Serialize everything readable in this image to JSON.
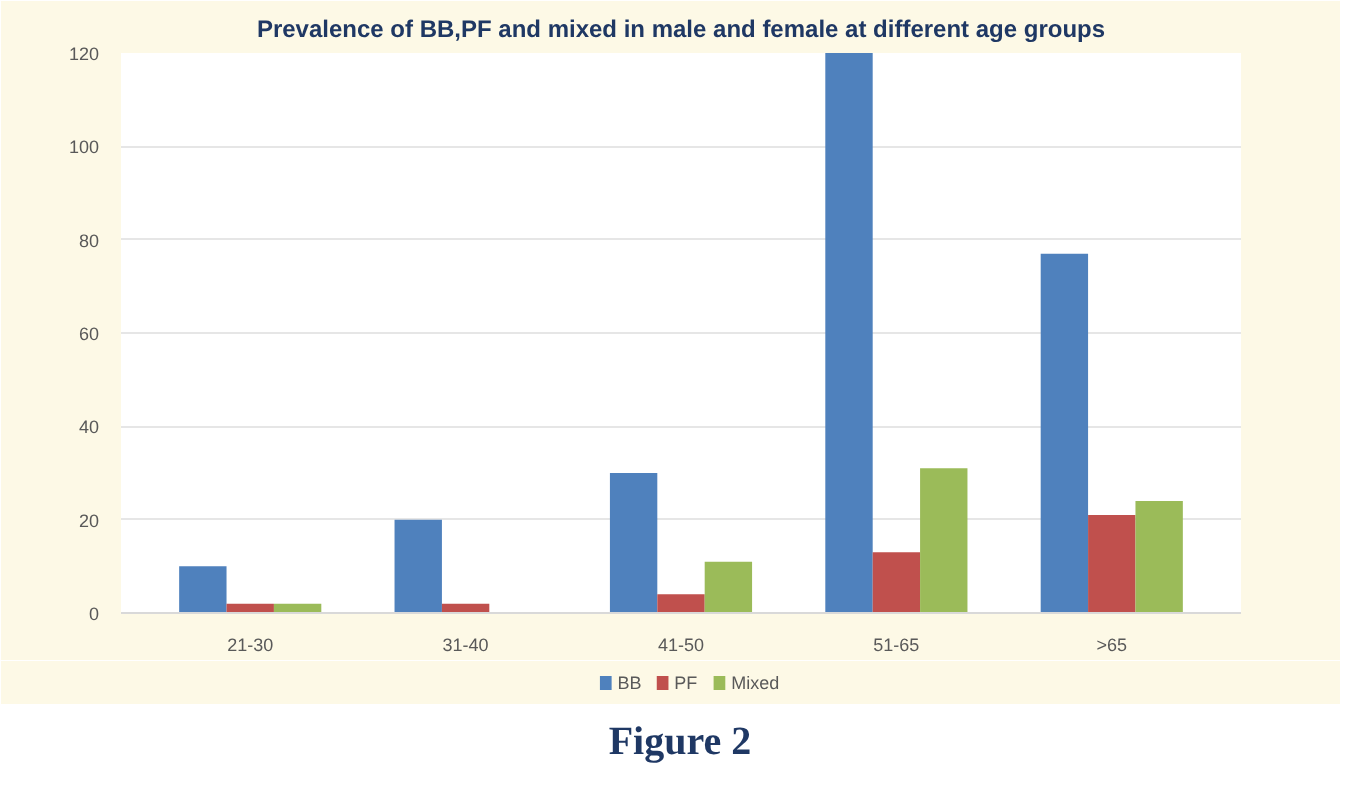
{
  "chart_data": {
    "type": "bar",
    "title": "Prevalence of BB,PF and mixed in male and female at different age groups",
    "categories": [
      "21-30",
      "31-40",
      "41-50",
      "51-65",
      ">65"
    ],
    "series": [
      {
        "name": "BB",
        "color": "#4f81bd",
        "values": [
          10,
          20,
          30,
          120,
          77
        ]
      },
      {
        "name": "PF",
        "color": "#c0504d",
        "values": [
          2,
          2,
          4,
          13,
          21
        ]
      },
      {
        "name": "Mixed",
        "color": "#9bbb59",
        "values": [
          2,
          0,
          11,
          31,
          24
        ]
      }
    ],
    "ylim": [
      0,
      120
    ],
    "yticks": [
      0,
      20,
      40,
      60,
      80,
      100,
      120
    ],
    "grid": "y",
    "legend": "bottom",
    "annotations": [
      "Figure 2"
    ]
  }
}
